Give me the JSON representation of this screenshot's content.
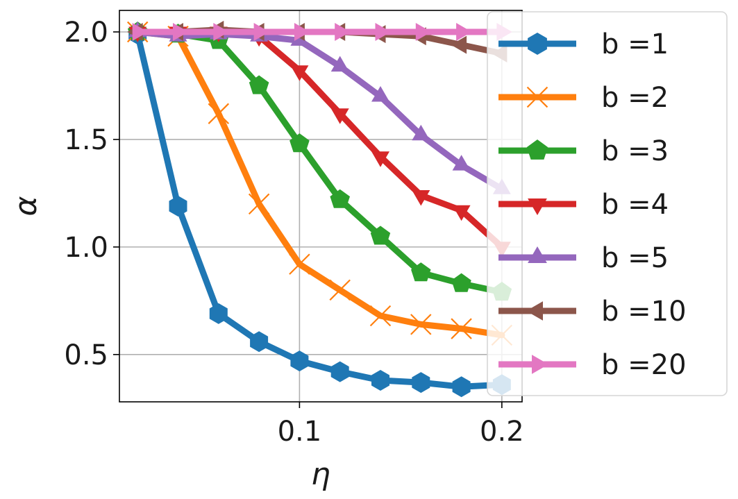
{
  "chart_data": {
    "type": "line",
    "title": "",
    "xlabel": "η",
    "ylabel": "α",
    "x": [
      0.02,
      0.04,
      0.06,
      0.08,
      0.1,
      0.12,
      0.14,
      0.16,
      0.18,
      0.2
    ],
    "xlim": [
      0.011,
      0.21
    ],
    "ylim": [
      0.28,
      2.1
    ],
    "xticks": [
      0.1,
      0.2
    ],
    "xtick_labels": [
      "0.1",
      "0.2"
    ],
    "yticks": [
      0.5,
      1.0,
      1.5,
      2.0
    ],
    "ytick_labels": [
      "0.5",
      "1.0",
      "1.5",
      "2.0"
    ],
    "grid": true,
    "legend_position": "right",
    "series": [
      {
        "name": "b =1",
        "color": "#1f77b4",
        "marker": "hexagon",
        "values": [
          1.99,
          1.19,
          0.69,
          0.56,
          0.47,
          0.42,
          0.38,
          0.37,
          0.35,
          0.36
        ]
      },
      {
        "name": "b =2",
        "color": "#ff7f0e",
        "marker": "x",
        "values": [
          2.0,
          1.98,
          1.62,
          1.2,
          0.92,
          0.8,
          0.68,
          0.64,
          0.62,
          0.59
        ]
      },
      {
        "name": "b =3",
        "color": "#2ca02c",
        "marker": "pentagon",
        "values": [
          2.0,
          1.99,
          1.96,
          1.75,
          1.48,
          1.22,
          1.05,
          0.88,
          0.83,
          0.79
        ]
      },
      {
        "name": "b =4",
        "color": "#d62728",
        "marker": "triangle-down",
        "values": [
          2.0,
          2.0,
          2.0,
          1.98,
          1.82,
          1.62,
          1.42,
          1.24,
          1.17,
          1.0
        ]
      },
      {
        "name": "b =5",
        "color": "#9467bd",
        "marker": "triangle-up",
        "values": [
          2.0,
          1.98,
          1.99,
          1.98,
          1.96,
          1.84,
          1.7,
          1.52,
          1.38,
          1.27
        ]
      },
      {
        "name": "b =10",
        "color": "#8c564b",
        "marker": "triangle-left",
        "values": [
          2.0,
          2.0,
          2.01,
          2.0,
          2.0,
          2.0,
          1.99,
          1.98,
          1.94,
          1.9
        ]
      },
      {
        "name": "b =20",
        "color": "#e377c2",
        "marker": "triangle-right",
        "values": [
          2.0,
          2.0,
          2.0,
          2.0,
          2.0,
          2.0,
          2.0,
          2.0,
          2.0,
          2.0
        ]
      }
    ]
  }
}
